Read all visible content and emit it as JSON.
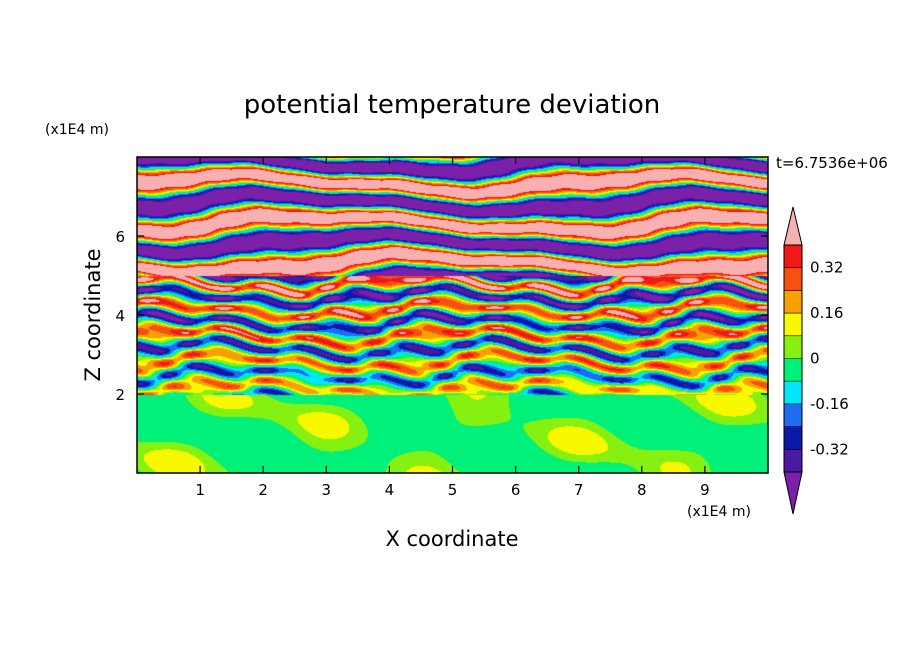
{
  "chart_data": {
    "type": "heatmap",
    "title": "potential temperature deviation",
    "xlabel": "X coordinate",
    "ylabel": "Z coordinate",
    "x_unit": "(x1E4 m)",
    "y_unit": "(x1E4 m)",
    "time_label": "t=6.7536e+06",
    "xlim": [
      0,
      10
    ],
    "ylim": [
      0,
      8
    ],
    "x_ticks": [
      1,
      2,
      3,
      4,
      5,
      6,
      7,
      8,
      9
    ],
    "y_ticks": [
      2,
      4,
      6
    ],
    "colorbar": {
      "levels": [
        -0.4,
        -0.32,
        -0.24,
        -0.16,
        -0.08,
        0,
        0.08,
        0.16,
        0.24,
        0.32,
        0.4
      ],
      "tick_labels": [
        "-0.32",
        "-0.16",
        "0",
        "0.16",
        "0.32"
      ],
      "tick_values": [
        -0.32,
        -0.16,
        0,
        0.16,
        0.32
      ],
      "colors_low_to_high": [
        "#7b20a8",
        "#4a1aa0",
        "#0a1aa8",
        "#1e6cf0",
        "#00e8f8",
        "#00f07a",
        "#86f010",
        "#f8f800",
        "#f8a000",
        "#f85010",
        "#f01818",
        "#f8b0b0"
      ],
      "extend": "both"
    }
  }
}
